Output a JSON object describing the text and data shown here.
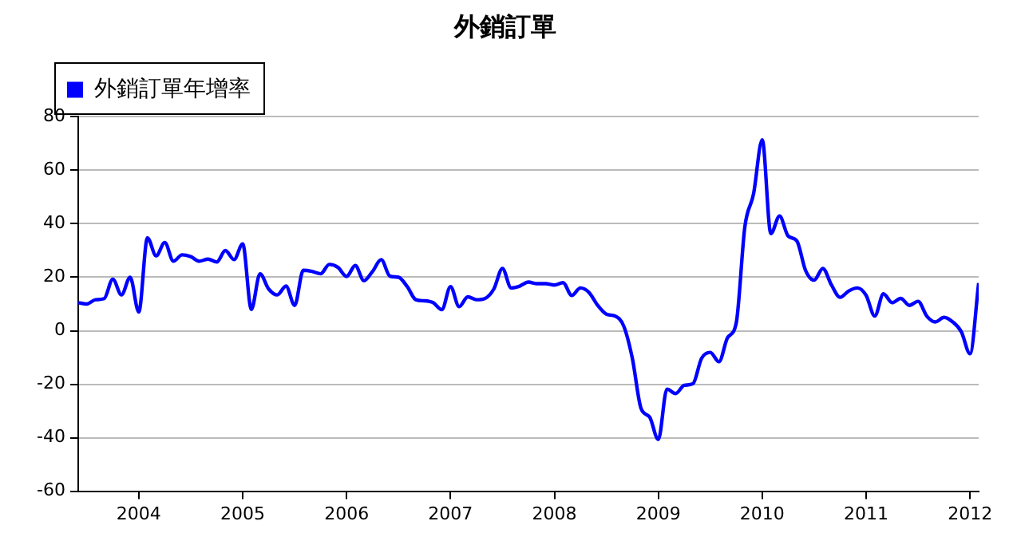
{
  "chart_data": {
    "type": "line",
    "title": "外銷訂單",
    "x": [
      "2003-06",
      "2003-07",
      "2003-08",
      "2003-09",
      "2003-10",
      "2003-11",
      "2003-12",
      "2004-01",
      "2004-02",
      "2004-03",
      "2004-04",
      "2004-05",
      "2004-06",
      "2004-07",
      "2004-08",
      "2004-09",
      "2004-10",
      "2004-11",
      "2004-12",
      "2005-01",
      "2005-02",
      "2005-03",
      "2005-04",
      "2005-05",
      "2005-06",
      "2005-07",
      "2005-08",
      "2005-09",
      "2005-10",
      "2005-11",
      "2005-12",
      "2006-01",
      "2006-02",
      "2006-03",
      "2006-04",
      "2006-05",
      "2006-06",
      "2006-07",
      "2006-08",
      "2006-09",
      "2006-10",
      "2006-11",
      "2006-12",
      "2007-01",
      "2007-02",
      "2007-03",
      "2007-04",
      "2007-05",
      "2007-06",
      "2007-07",
      "2007-08",
      "2007-09",
      "2007-10",
      "2007-11",
      "2007-12",
      "2008-01",
      "2008-02",
      "2008-03",
      "2008-04",
      "2008-05",
      "2008-06",
      "2008-07",
      "2008-08",
      "2008-09",
      "2008-10",
      "2008-11",
      "2008-12",
      "2009-01",
      "2009-02",
      "2009-03",
      "2009-04",
      "2009-05",
      "2009-06",
      "2009-07",
      "2009-08",
      "2009-09",
      "2009-10",
      "2009-11",
      "2009-12",
      "2010-01",
      "2010-02",
      "2010-03",
      "2010-04",
      "2010-05",
      "2010-06",
      "2010-07",
      "2010-08",
      "2010-09",
      "2010-10",
      "2010-11",
      "2010-12",
      "2011-01",
      "2011-02",
      "2011-03",
      "2011-04",
      "2011-05",
      "2011-06",
      "2011-07",
      "2011-08",
      "2011-09",
      "2011-10",
      "2011-11",
      "2011-12",
      "2012-01",
      "2012-02"
    ],
    "series": [
      {
        "name": "外銷訂單年增率",
        "color": "#0000ff",
        "values": [
          10.5,
          10,
          11.6,
          12,
          19.3,
          13.4,
          20,
          7,
          34.7,
          28,
          33,
          26,
          28.4,
          27.7,
          26,
          26.8,
          25.7,
          30,
          26.6,
          32.5,
          8,
          21.3,
          15.6,
          13.4,
          16.7,
          9.5,
          22.6,
          22.2,
          21.3,
          24.8,
          23.7,
          20.3,
          24.4,
          18.7,
          22.2,
          26.6,
          20.4,
          20,
          16.5,
          11.6,
          11.2,
          10.5,
          7.9,
          16.5,
          9,
          12.7,
          11.6,
          12.1,
          15.6,
          23.3,
          16,
          16.7,
          18.2,
          17.6,
          17.6,
          17.1,
          18,
          13.2,
          16,
          14.3,
          9.5,
          6.2,
          5.5,
          1.8,
          -10.3,
          -29,
          -32.3,
          -40.7,
          -21.8,
          -23.5,
          -20.4,
          -19.8,
          -10.3,
          -8.1,
          -11.6,
          -2.6,
          2.9,
          39,
          51.2,
          71.4,
          36.3,
          42.9,
          35.4,
          33.6,
          22.6,
          18.9,
          23.3,
          17.1,
          12.5,
          14.9,
          16,
          13.2,
          5.5,
          13.8,
          10.5,
          12.1,
          9.5,
          11,
          5.5,
          3.3,
          5,
          3.3,
          -0.4,
          -8.6,
          17.8
        ]
      }
    ],
    "xlim": [
      "2003-06",
      "2012-02"
    ],
    "xticks": [
      "2004",
      "2005",
      "2006",
      "2007",
      "2008",
      "2009",
      "2010",
      "2011",
      "2012"
    ],
    "ylim": [
      -60,
      80
    ],
    "yticks": [
      -60,
      -40,
      -20,
      0,
      20,
      40,
      60,
      80
    ],
    "grid": "y",
    "legend": "top left",
    "marker": "none",
    "line_style": "solid"
  }
}
